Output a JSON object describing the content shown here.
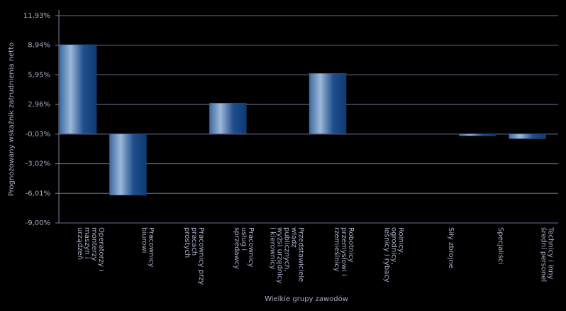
{
  "chart_data": {
    "type": "bar",
    "x_label": "Wielkie grupy zawodów",
    "y_label": "Prognozowany wskaźnik zatrudnienia netto",
    "categories": [
      "Operatorzy i monterzy maszyn i urządzeń",
      "Pracownicy biurowi",
      "Pracownicy przy pracach prostych",
      "Pracownicy usług i sprzedawcy",
      "Przedstawiciele władz publicznych, wyżsi urzędnicy i kierownicy",
      "Robotnicy przemysłowi i rzemieślnicy",
      "Rolnicy, ogrodnicy, leśnicy i rybacy",
      "Siły zbrojne",
      "Specjaliści",
      "Technicy i inny średni personel"
    ],
    "values": [
      9.0,
      -6.2,
      0,
      3.1,
      0,
      6.1,
      0,
      0,
      -0.2,
      -0.5
    ],
    "color": "#1f4e8c",
    "ylim": [
      -9.0,
      11.93
    ],
    "yticks": [
      {
        "value": 11.93,
        "label": "11,93%"
      },
      {
        "value": 8.94,
        "label": "8,94%"
      },
      {
        "value": 5.95,
        "label": "5,95%"
      },
      {
        "value": 2.96,
        "label": "2,96%"
      },
      {
        "value": -0.03,
        "label": "-0,03%"
      },
      {
        "value": -3.02,
        "label": "-3,02%"
      },
      {
        "value": -6.01,
        "label": "-6,01%"
      },
      {
        "value": -9.0,
        "label": "-9,00%"
      }
    ],
    "grid": true
  }
}
